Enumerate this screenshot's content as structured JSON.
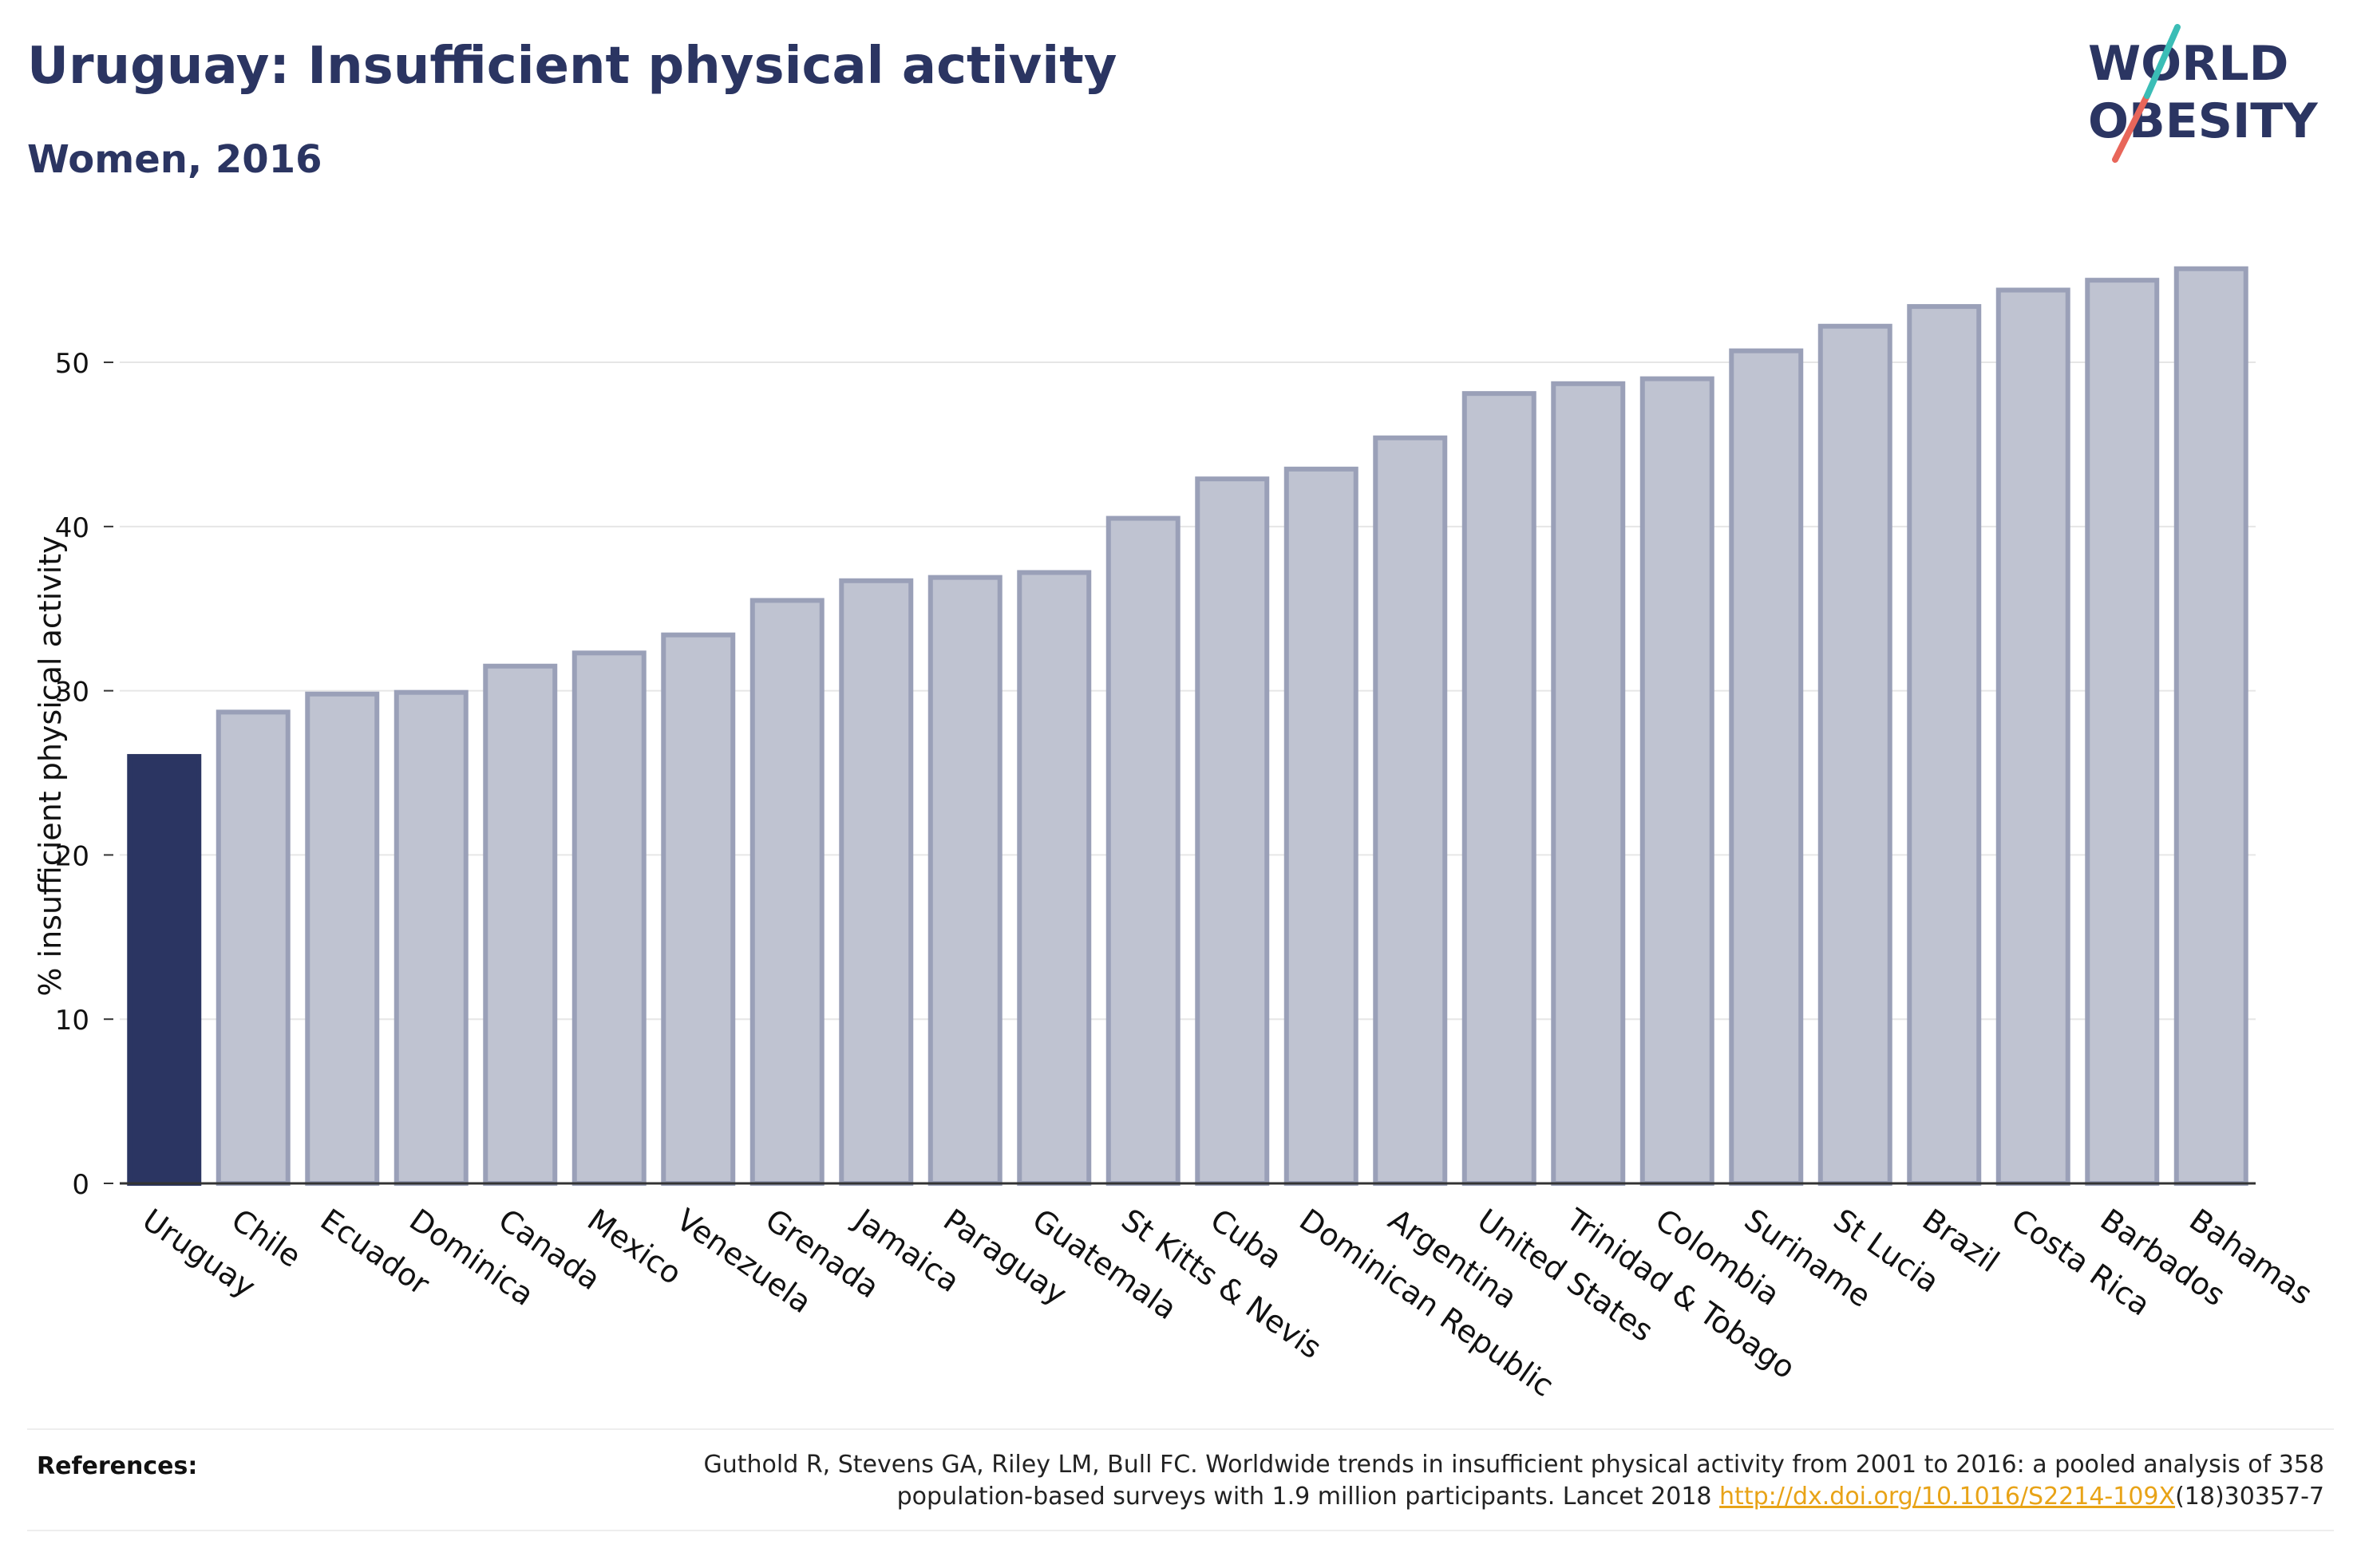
{
  "header": {
    "title": "Uruguay: Insufficient physical activity",
    "subtitle": "Women, 2016"
  },
  "logo": {
    "line1": "WORLD",
    "line2": "OBESITY"
  },
  "colors": {
    "highlight": "#2b3562",
    "bar_fill": "#bfc3d1",
    "bar_stroke": "#9aa0b8",
    "grid": "#e6e6e6",
    "axis": "#333333",
    "logo_teal": "#3bbdb6",
    "logo_coral": "#e8665a"
  },
  "chart_data": {
    "type": "bar",
    "title": "Uruguay: Insufficient physical activity",
    "subtitle": "Women, 2016",
    "xlabel": "",
    "ylabel": "% insufficient physical activity",
    "ylim": [
      0,
      57
    ],
    "yticks": [
      0,
      10,
      20,
      30,
      40,
      50
    ],
    "grid": true,
    "legend": "none",
    "highlight_category": "Uruguay",
    "categories": [
      "Uruguay",
      "Chile",
      "Ecuador",
      "Dominica",
      "Canada",
      "Mexico",
      "Venezuela",
      "Grenada",
      "Jamaica",
      "Paraguay",
      "Guatemala",
      "St Kitts & Nevis",
      "Cuba",
      "Dominican Republic",
      "Argentina",
      "United States",
      "Trinidad & Tobago",
      "Colombia",
      "Suriname",
      "St Lucia",
      "Brazil",
      "Costa Rica",
      "Barbados",
      "Bahamas"
    ],
    "values": [
      26.0,
      28.7,
      29.8,
      29.9,
      31.5,
      32.3,
      33.4,
      35.5,
      36.7,
      36.9,
      37.2,
      40.5,
      42.9,
      43.5,
      45.4,
      48.1,
      48.7,
      49.0,
      50.7,
      52.2,
      53.4,
      54.4,
      55.0,
      55.7
    ]
  },
  "references": {
    "label": "References:",
    "text_before": "Guthold R, Stevens GA, Riley LM, Bull FC. Worldwide trends in insufficient physical activity from 2001 to 2016: a pooled analysis of 358 population-based surveys with 1.9 million participants. Lancet 2018 ",
    "link": "http://dx.doi.org/10.1016/S2214-109X",
    "text_after": "(18)30357-7"
  }
}
